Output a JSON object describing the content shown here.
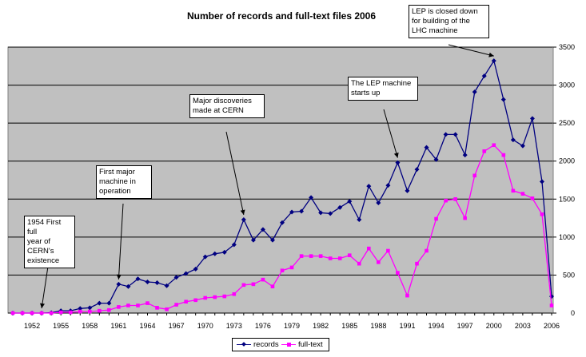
{
  "chart_data": {
    "type": "line",
    "title": "Number of records and full-text files 2006",
    "xlabel": "",
    "ylabel": "",
    "x": [
      1950,
      1951,
      1952,
      1953,
      1954,
      1955,
      1956,
      1957,
      1958,
      1959,
      1960,
      1961,
      1962,
      1963,
      1964,
      1965,
      1966,
      1967,
      1968,
      1969,
      1970,
      1971,
      1972,
      1973,
      1974,
      1975,
      1976,
      1977,
      1978,
      1979,
      1980,
      1981,
      1982,
      1983,
      1984,
      1985,
      1986,
      1987,
      1988,
      1989,
      1990,
      1991,
      1992,
      1993,
      1994,
      1995,
      1996,
      1997,
      1998,
      1999,
      2000,
      2001,
      2002,
      2003,
      2004,
      2005,
      2006
    ],
    "x_tick_labels": [
      "1952",
      "1955",
      "1958",
      "1961",
      "1964",
      "1967",
      "1970",
      "1973",
      "1976",
      "1979",
      "1982",
      "1985",
      "1988",
      "1991",
      "1994",
      "1997",
      "2000",
      "2003",
      "2006"
    ],
    "y_tick_labels": [
      "0",
      "500",
      "1000",
      "1500",
      "2000",
      "2500",
      "3000",
      "3500"
    ],
    "ylim": [
      0,
      3500
    ],
    "grid": "horizontal",
    "legend_position": "bottom",
    "series": [
      {
        "name": "records",
        "color": "#000080",
        "marker": "diamond",
        "values": [
          0,
          0,
          0,
          0,
          5,
          30,
          30,
          60,
          70,
          130,
          130,
          380,
          350,
          450,
          410,
          400,
          360,
          470,
          520,
          580,
          740,
          780,
          800,
          900,
          1230,
          960,
          1100,
          960,
          1190,
          1330,
          1340,
          1520,
          1320,
          1310,
          1390,
          1470,
          1230,
          1670,
          1450,
          1680,
          1980,
          1610,
          1890,
          2180,
          2020,
          2350,
          2350,
          2080,
          2910,
          3120,
          3320,
          2810,
          2280,
          2200,
          2560,
          1730,
          220
        ]
      },
      {
        "name": "full-text",
        "color": "#FF00FF",
        "marker": "square",
        "values": [
          0,
          0,
          0,
          0,
          0,
          10,
          10,
          20,
          20,
          30,
          40,
          80,
          100,
          100,
          130,
          70,
          50,
          110,
          150,
          170,
          200,
          210,
          220,
          250,
          370,
          380,
          440,
          350,
          560,
          600,
          750,
          750,
          750,
          720,
          720,
          760,
          650,
          850,
          670,
          820,
          530,
          230,
          650,
          820,
          1240,
          1480,
          1500,
          1250,
          1810,
          2130,
          2210,
          2080,
          1610,
          1570,
          1510,
          1300,
          100
        ]
      }
    ],
    "annotations": [
      {
        "text": "1954 First full year of CERN's existence",
        "x": 1953,
        "series": "records"
      },
      {
        "text": "First major machine in operation",
        "x": 1961,
        "series": "records"
      },
      {
        "text": "Major discoveries made at CERN",
        "x": 1974,
        "series": "records"
      },
      {
        "text": "The LEP machine starts up",
        "x": 1990,
        "series": "records"
      },
      {
        "text": "LEP is closed down for building of the LHC machine",
        "x": 2000,
        "series": "records"
      }
    ]
  },
  "annotation_texts": {
    "a1954": "1954 First full\nyear of\nCERN's\nexistence",
    "a1961": "First major\nmachine in\noperation",
    "a1974": "Major discoveries\nmade at CERN",
    "a1990": "The LEP machine\nstarts up",
    "a2000": "LEP is closed down\nfor building of the\nLHC machine"
  },
  "legend": {
    "records": "records",
    "fulltext": "full-text"
  }
}
